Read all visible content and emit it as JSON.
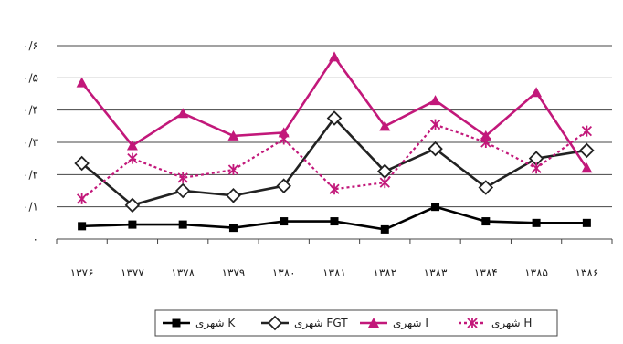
{
  "chart_data": {
    "type": "line",
    "categories": [
      "۱۳۷۶",
      "۱۳۷۷",
      "۱۳۷۸",
      "۱۳۷۹",
      "۱۳۸۰",
      "۱۳۸۱",
      "۱۳۸۲",
      "۱۳۸۳",
      "۱۳۸۴",
      "۱۳۸۵",
      "۱۳۸۶"
    ],
    "y_ticks": [
      {
        "value": 0,
        "label": "۰"
      },
      {
        "value": 0.1,
        "label": "۰/۱"
      },
      {
        "value": 0.2,
        "label": "۰/۲"
      },
      {
        "value": 0.3,
        "label": "۰/۳"
      },
      {
        "value": 0.4,
        "label": "۰/۴"
      },
      {
        "value": 0.5,
        "label": "۰/۵"
      },
      {
        "value": 0.6,
        "label": "۰/۶"
      }
    ],
    "ylim": [
      0,
      0.6
    ],
    "grid": true,
    "legend_position": "bottom",
    "series": [
      {
        "name": "شهری K",
        "color": "#000000",
        "marker": "square",
        "dash": "solid",
        "values": [
          0.04,
          0.045,
          0.045,
          0.035,
          0.055,
          0.055,
          0.03,
          0.1,
          0.055,
          0.05,
          0.05
        ]
      },
      {
        "name": "شهری FGT",
        "color": "#222222",
        "marker": "diamond",
        "dash": "solid",
        "values": [
          0.235,
          0.105,
          0.15,
          0.135,
          0.165,
          0.375,
          0.21,
          0.28,
          0.16,
          0.25,
          0.275
        ]
      },
      {
        "name": "شهری I",
        "color": "#c2187a",
        "marker": "triangle",
        "dash": "solid",
        "values": [
          0.485,
          0.29,
          0.39,
          0.32,
          0.33,
          0.565,
          0.35,
          0.43,
          0.32,
          0.455,
          0.22
        ]
      },
      {
        "name": "شهری H",
        "color": "#c2187a",
        "marker": "star",
        "dash": "dotted",
        "values": [
          0.125,
          0.25,
          0.19,
          0.215,
          0.31,
          0.155,
          0.175,
          0.355,
          0.3,
          0.22,
          0.335
        ]
      }
    ]
  }
}
